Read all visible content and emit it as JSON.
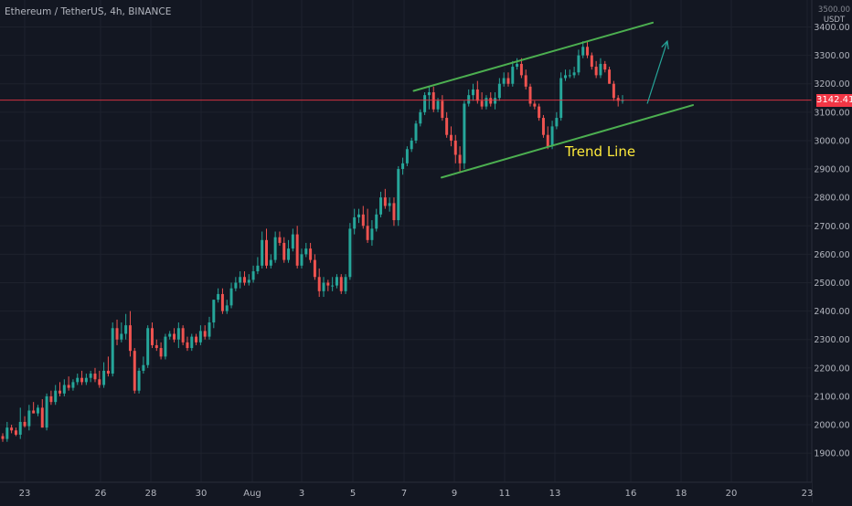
{
  "header": {
    "symbol": "Ethereum / TetherUS",
    "interval": "4h",
    "exchange": "BINANCE"
  },
  "price_axis": {
    "unit": "USDT",
    "top_clipped_tick": "3500.00"
  },
  "colors": {
    "background": "#131722",
    "grid": "#1e222d",
    "up": "#26a69a",
    "down": "#ef5350",
    "current_price": "#f23645",
    "channel": "#4caf50",
    "annotation_text": "#ffeb3b",
    "arrow": "#26a69a"
  },
  "chart_data": {
    "type": "candlestick",
    "title": "Ethereum / TetherUS, 4h, BINANCE",
    "xlabel": "",
    "ylabel": "USDT",
    "ylim": [
      1855,
      3530
    ],
    "y_ticks": [
      1900,
      2000,
      2100,
      2200,
      2300,
      2400,
      2500,
      2600,
      2700,
      2800,
      2900,
      3000,
      3100,
      3200,
      3300,
      3400
    ],
    "x_ticks": [
      "23",
      "26",
      "28",
      "30",
      "Aug",
      "3",
      "5",
      "7",
      "9",
      "11",
      "13",
      "16",
      "18",
      "20",
      "23"
    ],
    "grid": true,
    "current_price": 3142.41,
    "current_price_label": "3142.41",
    "candles_open": [
      1960,
      1950,
      1990,
      1980,
      1965,
      2010,
      1995,
      2050,
      2040,
      2060,
      1990,
      2100,
      2080,
      2120,
      2110,
      2140,
      2130,
      2150,
      2165,
      2150,
      2165,
      2180,
      2160,
      2140,
      2190,
      2180,
      2340,
      2300,
      2320,
      2350,
      2260,
      2120,
      2190,
      2210,
      2340,
      2280,
      2270,
      2240,
      2310,
      2320,
      2300,
      2340,
      2290,
      2270,
      2310,
      2290,
      2330,
      2310,
      2360,
      2440,
      2460,
      2400,
      2420,
      2480,
      2500,
      2520,
      2500,
      2510,
      2540,
      2560,
      2650,
      2560,
      2580,
      2660,
      2640,
      2580,
      2620,
      2670,
      2560,
      2600,
      2620,
      2580,
      2520,
      2470,
      2500,
      2490,
      2490,
      2520,
      2470,
      2520,
      2690,
      2730,
      2740,
      2700,
      2650,
      2690,
      2740,
      2800,
      2770,
      2780,
      2720,
      2900,
      2920,
      2970,
      3000,
      3060,
      3100,
      3160,
      3170,
      3110,
      3140,
      3080,
      3020,
      3000,
      2950,
      2920,
      3130,
      3160,
      3180,
      3140,
      3120,
      3150,
      3130,
      3150,
      3200,
      3220,
      3200,
      3260,
      3270,
      3230,
      3190,
      3130,
      3120,
      3080,
      3020,
      2980,
      3050,
      3080,
      3220,
      3230,
      3230,
      3240,
      3300,
      3330,
      3300,
      3260,
      3230,
      3270,
      3250,
      3200,
      3150,
      3140
    ],
    "candles_high": [
      1970,
      2010,
      2000,
      1990,
      2060,
      2030,
      2070,
      2080,
      2070,
      2090,
      2110,
      2120,
      2140,
      2150,
      2160,
      2170,
      2160,
      2180,
      2190,
      2180,
      2190,
      2200,
      2190,
      2220,
      2240,
      2360,
      2370,
      2360,
      2390,
      2400,
      2270,
      2200,
      2240,
      2350,
      2360,
      2300,
      2290,
      2320,
      2330,
      2340,
      2360,
      2350,
      2310,
      2320,
      2320,
      2350,
      2350,
      2380,
      2440,
      2480,
      2480,
      2440,
      2500,
      2520,
      2540,
      2540,
      2530,
      2560,
      2590,
      2680,
      2690,
      2600,
      2680,
      2680,
      2660,
      2650,
      2690,
      2700,
      2620,
      2640,
      2640,
      2600,
      2550,
      2520,
      2510,
      2520,
      2530,
      2530,
      2530,
      2710,
      2760,
      2760,
      2770,
      2760,
      2720,
      2760,
      2820,
      2830,
      2800,
      2800,
      2910,
      2940,
      2980,
      3010,
      3070,
      3110,
      3170,
      3190,
      3190,
      3150,
      3160,
      3100,
      3050,
      3020,
      2980,
      3140,
      3180,
      3200,
      3210,
      3170,
      3160,
      3170,
      3170,
      3220,
      3240,
      3240,
      3280,
      3290,
      3290,
      3250,
      3200,
      3140,
      3130,
      3090,
      3050,
      3070,
      3100,
      3240,
      3250,
      3250,
      3260,
      3320,
      3350,
      3350,
      3310,
      3280,
      3290,
      3280,
      3260,
      3210,
      3160,
      3160
    ],
    "candles_low": [
      1940,
      1940,
      1970,
      1960,
      1950,
      1990,
      1980,
      2040,
      2030,
      1990,
      1980,
      2070,
      2070,
      2100,
      2100,
      2120,
      2120,
      2140,
      2140,
      2140,
      2150,
      2150,
      2130,
      2130,
      2170,
      2170,
      2280,
      2290,
      2300,
      2240,
      2110,
      2110,
      2180,
      2200,
      2270,
      2260,
      2230,
      2230,
      2300,
      2290,
      2270,
      2280,
      2260,
      2260,
      2280,
      2280,
      2300,
      2300,
      2340,
      2430,
      2390,
      2390,
      2410,
      2470,
      2480,
      2490,
      2490,
      2500,
      2530,
      2550,
      2550,
      2550,
      2570,
      2630,
      2570,
      2570,
      2610,
      2550,
      2550,
      2590,
      2570,
      2510,
      2450,
      2450,
      2470,
      2470,
      2480,
      2460,
      2460,
      2510,
      2670,
      2710,
      2690,
      2640,
      2630,
      2680,
      2730,
      2760,
      2750,
      2700,
      2700,
      2880,
      2910,
      2960,
      2990,
      3050,
      3090,
      3110,
      3100,
      3100,
      3070,
      3010,
      2980,
      2920,
      2890,
      2900,
      3120,
      3140,
      3130,
      3110,
      3110,
      3120,
      3110,
      3140,
      3190,
      3190,
      3190,
      3250,
      3220,
      3180,
      3120,
      3110,
      3070,
      3010,
      2970,
      2970,
      3040,
      3070,
      3210,
      3220,
      3220,
      3230,
      3290,
      3290,
      3250,
      3220,
      3220,
      3240,
      3200,
      3140,
      3120,
      3130
    ],
    "candles_close": [
      1950,
      1990,
      1980,
      1965,
      2010,
      1995,
      2050,
      2040,
      2060,
      1990,
      2100,
      2080,
      2120,
      2110,
      2140,
      2130,
      2150,
      2165,
      2150,
      2165,
      2180,
      2160,
      2140,
      2190,
      2180,
      2340,
      2300,
      2320,
      2350,
      2260,
      2120,
      2190,
      2210,
      2340,
      2280,
      2270,
      2240,
      2310,
      2320,
      2300,
      2340,
      2290,
      2270,
      2310,
      2290,
      2330,
      2310,
      2360,
      2440,
      2460,
      2400,
      2420,
      2480,
      2500,
      2520,
      2500,
      2510,
      2540,
      2560,
      2650,
      2560,
      2580,
      2660,
      2640,
      2580,
      2620,
      2670,
      2560,
      2600,
      2620,
      2580,
      2520,
      2470,
      2500,
      2490,
      2490,
      2520,
      2470,
      2520,
      2690,
      2730,
      2740,
      2700,
      2650,
      2690,
      2740,
      2800,
      2770,
      2780,
      2720,
      2900,
      2920,
      2970,
      3000,
      3060,
      3100,
      3160,
      3170,
      3110,
      3140,
      3080,
      3020,
      3000,
      2950,
      2920,
      3130,
      3160,
      3180,
      3140,
      3120,
      3150,
      3130,
      3150,
      3200,
      3220,
      3200,
      3260,
      3270,
      3230,
      3190,
      3130,
      3120,
      3080,
      3020,
      2980,
      3050,
      3080,
      3220,
      3230,
      3230,
      3240,
      3300,
      3330,
      3300,
      3260,
      3230,
      3270,
      3250,
      3200,
      3150,
      3140,
      3142.41
    ],
    "annotations": [
      {
        "type": "trendline",
        "name": "channel-upper",
        "x1": 0.4855,
        "y1": 3175,
        "x2": 0.7661,
        "y2": 3415
      },
      {
        "type": "trendline",
        "name": "channel-lower",
        "x1": 0.5182,
        "y1": 2870,
        "x2": 0.8133,
        "y2": 3125
      },
      {
        "type": "arrow",
        "name": "up-arrow",
        "x1": 0.7597,
        "y1": 3130,
        "x2": 0.7832,
        "y2": 3350
      },
      {
        "type": "text",
        "name": "trend-line-label",
        "text": "Trend Line",
        "x": 0.6631,
        "y": 2945
      }
    ]
  }
}
